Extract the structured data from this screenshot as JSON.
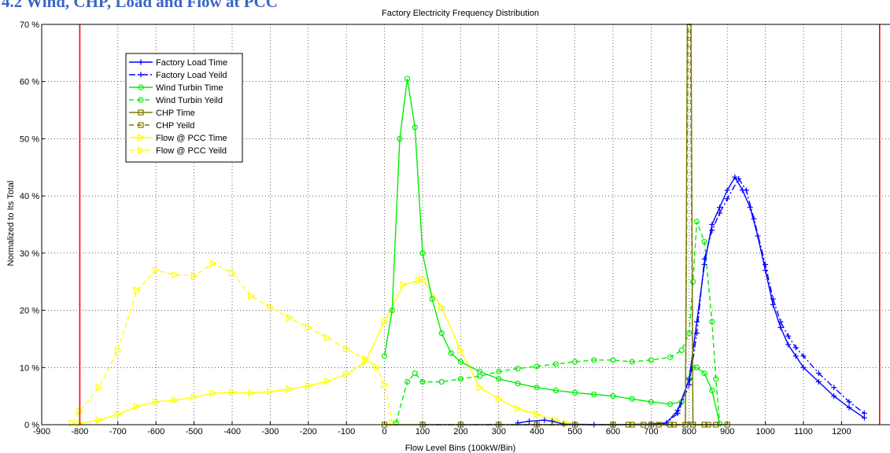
{
  "page": {
    "section_heading": "4.2 Wind, CHP, Load and Flow at PCC"
  },
  "chart_data": {
    "type": "line",
    "title": "Factory Electricity Frequency Distribution",
    "xlabel": "Flow Level Bins (100kW/Bin)",
    "ylabel": "Normalized to Its Total",
    "xlim": [
      -900,
      1350
    ],
    "ylim": [
      0,
      70
    ],
    "xticks": [
      -900,
      -800,
      -700,
      -600,
      -500,
      -400,
      -300,
      -200,
      -100,
      0,
      100,
      200,
      300,
      400,
      500,
      600,
      700,
      800,
      900,
      1000,
      1100,
      1200
    ],
    "yticks": [
      0,
      10,
      20,
      30,
      40,
      50,
      60,
      70
    ],
    "ytick_suffix": " %",
    "grid": true,
    "legend_position": "top-left",
    "limit_lines": {
      "x": [
        -800,
        1300
      ],
      "color": "#ff0000"
    },
    "series": [
      {
        "name": "Factory Load Time",
        "color": "#0000ff",
        "dash": "solid",
        "marker": "plus",
        "x": [
          350,
          380,
          420,
          440,
          470,
          600,
          700,
          740,
          770,
          800,
          820,
          840,
          860,
          880,
          900,
          920,
          940,
          960,
          980,
          1000,
          1020,
          1040,
          1060,
          1080,
          1100,
          1140,
          1180,
          1220,
          1260
        ],
        "y": [
          0.3,
          0.6,
          0.8,
          0.6,
          0.1,
          0,
          0.1,
          0.3,
          2.5,
          8,
          18,
          28,
          35,
          38,
          41,
          43.3,
          41,
          38,
          33,
          27,
          21,
          17,
          14,
          12,
          10,
          7.5,
          5,
          3,
          1.2
        ]
      },
      {
        "name": "Factory Load Yeild",
        "color": "#0000ff",
        "dash": "dashdot",
        "marker": "plus",
        "x": [
          100,
          200,
          300,
          400,
          500,
          550,
          600,
          700,
          740,
          770,
          800,
          820,
          840,
          860,
          880,
          900,
          930,
          950,
          970,
          1000,
          1020,
          1040,
          1060,
          1080,
          1100,
          1140,
          1180,
          1220,
          1260
        ],
        "y": [
          0,
          0,
          0,
          0,
          0,
          0,
          0,
          0.1,
          0.3,
          2,
          7,
          16,
          29,
          34,
          37,
          39.5,
          43,
          41,
          36,
          28,
          22,
          18,
          15.5,
          13.5,
          12,
          9,
          6.5,
          4,
          2
        ]
      },
      {
        "name": "Wind Turbin Time",
        "color": "#00ee00",
        "dash": "solid",
        "marker": "circle",
        "x": [
          0,
          20,
          40,
          60,
          80,
          100,
          125,
          150,
          175,
          200,
          250,
          300,
          350,
          400,
          450,
          500,
          550,
          600,
          650,
          700,
          750,
          780,
          800,
          810,
          820,
          840,
          860,
          880
        ],
        "y": [
          12,
          20,
          50,
          60.5,
          52,
          30,
          22,
          16,
          12.5,
          11,
          9.3,
          8,
          7.2,
          6.5,
          6,
          5.6,
          5.3,
          5,
          4.5,
          4,
          3.6,
          4,
          8,
          10,
          10,
          9,
          6,
          0.2
        ]
      },
      {
        "name": "Wind Turbin Yeild",
        "color": "#00ee00",
        "dash": "dashed",
        "marker": "circle",
        "x": [
          30,
          60,
          80,
          100,
          150,
          200,
          250,
          300,
          350,
          400,
          450,
          500,
          550,
          600,
          650,
          700,
          750,
          780,
          800,
          810,
          820,
          840,
          860,
          870,
          880
        ],
        "y": [
          0.3,
          7.5,
          9,
          7.5,
          7.5,
          8,
          8.5,
          9.3,
          9.8,
          10.2,
          10.6,
          11,
          11.3,
          11.3,
          11,
          11.3,
          11.8,
          13,
          16,
          25,
          35.5,
          32,
          18,
          8,
          0.2
        ]
      },
      {
        "name": "CHP Time",
        "color": "#7a7a00",
        "dash": "solid",
        "marker": "square",
        "x": [
          0,
          100,
          200,
          300,
          400,
          500,
          600,
          650,
          700,
          750,
          790,
          795,
          800,
          805,
          810,
          850,
          900
        ],
        "y": [
          0,
          0,
          0,
          0,
          0,
          0,
          0,
          0,
          0,
          0,
          0,
          70,
          70,
          70,
          0,
          0,
          0
        ]
      },
      {
        "name": "CHP Yeild",
        "color": "#7a7a00",
        "dash": "dashed",
        "marker": "square",
        "x": [
          600,
          640,
          680,
          720,
          760,
          790,
          797,
          803,
          810,
          840,
          870
        ],
        "y": [
          0,
          0,
          0,
          0,
          0,
          0,
          70,
          70,
          0,
          0,
          0
        ]
      },
      {
        "name": "Flow @ PCC Time",
        "color": "#ffff00",
        "dash": "solid",
        "marker": "triangle-right",
        "x": [
          -800,
          -750,
          -700,
          -650,
          -600,
          -550,
          -500,
          -450,
          -400,
          -350,
          -300,
          -250,
          -200,
          -150,
          -100,
          -50,
          0,
          50,
          90,
          100,
          150,
          200,
          250,
          300,
          350,
          400,
          450,
          480
        ],
        "y": [
          0.2,
          0.8,
          1.8,
          3.2,
          4,
          4.3,
          4.8,
          5.5,
          5.7,
          5.5,
          5.8,
          6.2,
          6.8,
          7.6,
          8.8,
          11,
          18,
          24.5,
          25.2,
          25.5,
          20.5,
          13,
          6.5,
          4.5,
          2.8,
          1.8,
          0.8,
          0.2
        ]
      },
      {
        "name": "Flow @ PCC Yeild",
        "color": "#ffff00",
        "dash": "dashed",
        "marker": "triangle-right",
        "x": [
          -820,
          -800,
          -750,
          -700,
          -650,
          -600,
          -550,
          -500,
          -450,
          -400,
          -350,
          -300,
          -250,
          -200,
          -150,
          -100,
          -50,
          -20,
          0,
          20
        ],
        "y": [
          0.3,
          2.3,
          6.5,
          13,
          23.5,
          27,
          26.2,
          26,
          28.2,
          26.5,
          22.5,
          20.5,
          18.7,
          17,
          15.2,
          13.2,
          11.5,
          10,
          7,
          0.3
        ]
      }
    ]
  }
}
